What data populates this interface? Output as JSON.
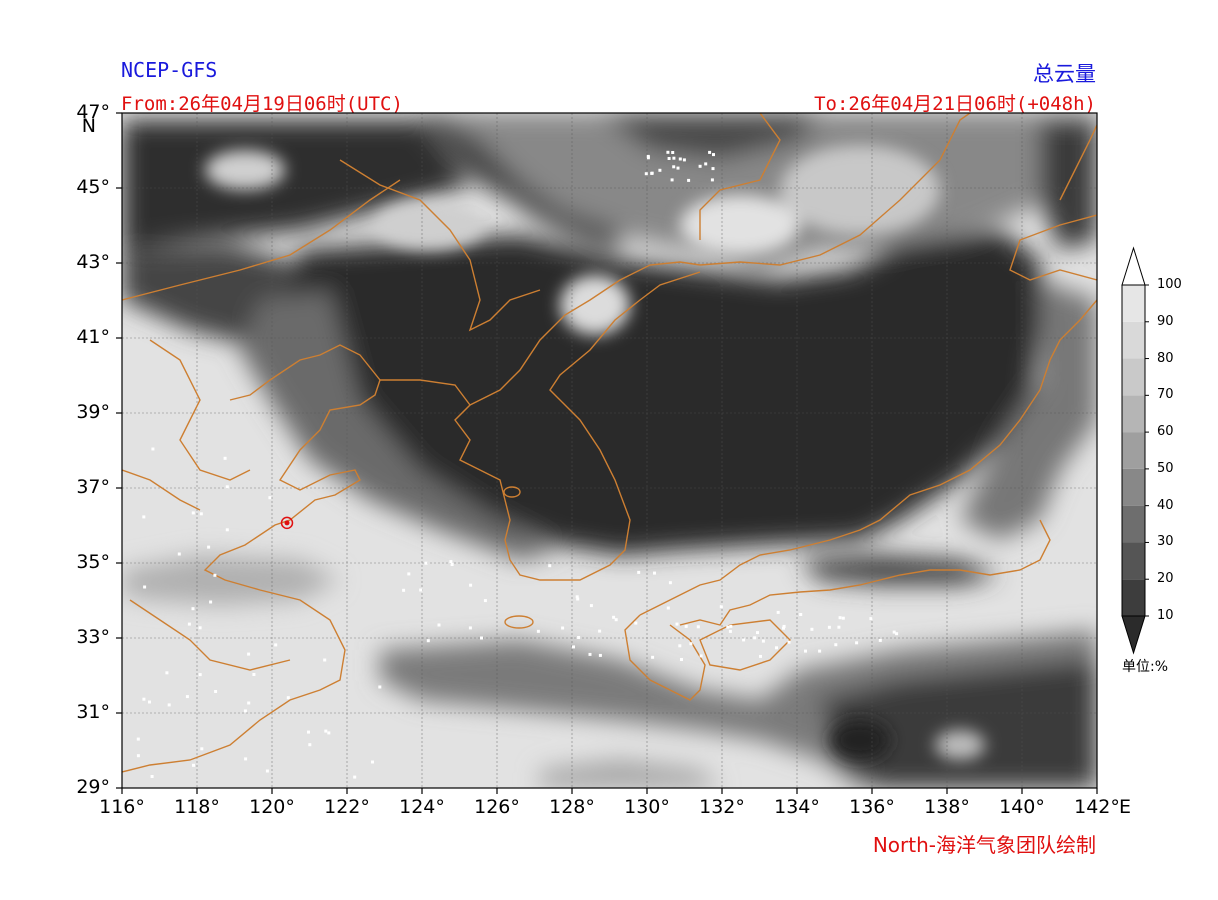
{
  "header": {
    "model": "NCEP-GFS",
    "variable": "总云量",
    "from": "From:26年04月19日06时(UTC)",
    "to": "To:26年04月21日06时(+048h)"
  },
  "footer": {
    "credit": "North-海洋气象团队绘制"
  },
  "map": {
    "lon_range": [
      116,
      142
    ],
    "lat_range": [
      29,
      47
    ],
    "lat_ticks": [
      "29°",
      "31°",
      "33°",
      "35°",
      "37°",
      "39°",
      "41°",
      "43°",
      "45°",
      "47°"
    ],
    "lat_axis_suffix": "N",
    "lon_ticks": [
      "116°",
      "118°",
      "120°",
      "122°",
      "124°",
      "126°",
      "128°",
      "130°",
      "132°",
      "134°",
      "136°",
      "138°",
      "140°",
      "142°"
    ],
    "lon_axis_suffix": "E",
    "marker": {
      "lon": 120.4,
      "lat": 36.07,
      "color": "#e01010"
    },
    "coastline_color": "#cd7f32",
    "grid": true
  },
  "colorbar": {
    "levels": [
      "10",
      "20",
      "30",
      "40",
      "50",
      "60",
      "70",
      "80",
      "90",
      "100"
    ],
    "colors": [
      "#2b2b2b",
      "#3d3d3d",
      "#555555",
      "#6e6e6e",
      "#888888",
      "#9f9f9f",
      "#b5b5b5",
      "#c9c9c9",
      "#d9d9d9",
      "#e6e6e6"
    ],
    "unit": "单位:%"
  }
}
